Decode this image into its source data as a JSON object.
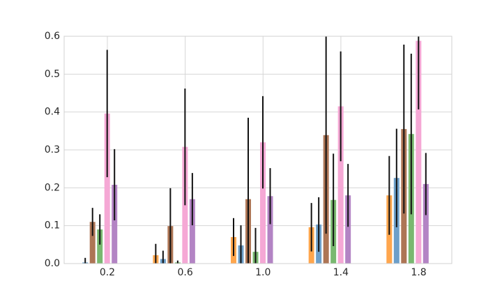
{
  "chart_data": {
    "type": "bar",
    "x": [
      0.2,
      0.6,
      1.0,
      1.4,
      1.8
    ],
    "xlim": [
      -0.022,
      1.97
    ],
    "xticks": [
      0.2,
      0.6,
      1.0,
      1.4,
      1.8
    ],
    "ylim": [
      0,
      0.6
    ],
    "yticks": [
      0.0,
      0.1,
      0.2,
      0.3,
      0.4,
      0.5,
      0.6
    ],
    "grid": true,
    "series": [
      {
        "color": "#ffa64d",
        "values": [
          0,
          0.022,
          0.07,
          0.096,
          0.18
        ],
        "errors": [
          0,
          0.03,
          0.05,
          0.064,
          0.104
        ]
      },
      {
        "color": "#6d9fc9",
        "values": [
          0.003,
          0.012,
          0.048,
          0.103,
          0.226
        ],
        "errors": [
          0.012,
          0.022,
          0.053,
          0.072,
          0.13
        ]
      },
      {
        "color": "#ad7555",
        "values": [
          0.11,
          0.099,
          0.17,
          0.339,
          0.355
        ],
        "errors": [
          0.037,
          0.1,
          0.215,
          0.26,
          0.223
        ]
      },
      {
        "color": "#79b870",
        "values": [
          0.09,
          0.003,
          0.031,
          0.168,
          0.342
        ],
        "errors": [
          0.04,
          0.005,
          0.063,
          0.122,
          0.212
        ]
      },
      {
        "color": "#f5a8d5",
        "values": [
          0.396,
          0.308,
          0.32,
          0.415,
          0.588
        ],
        "errors": [
          0.168,
          0.154,
          0.122,
          0.145,
          0.181
        ]
      },
      {
        "color": "#b384c4",
        "values": [
          0.208,
          0.17,
          0.178,
          0.18,
          0.21
        ],
        "errors": [
          0.094,
          0.069,
          0.074,
          0.083,
          0.082
        ]
      }
    ]
  }
}
